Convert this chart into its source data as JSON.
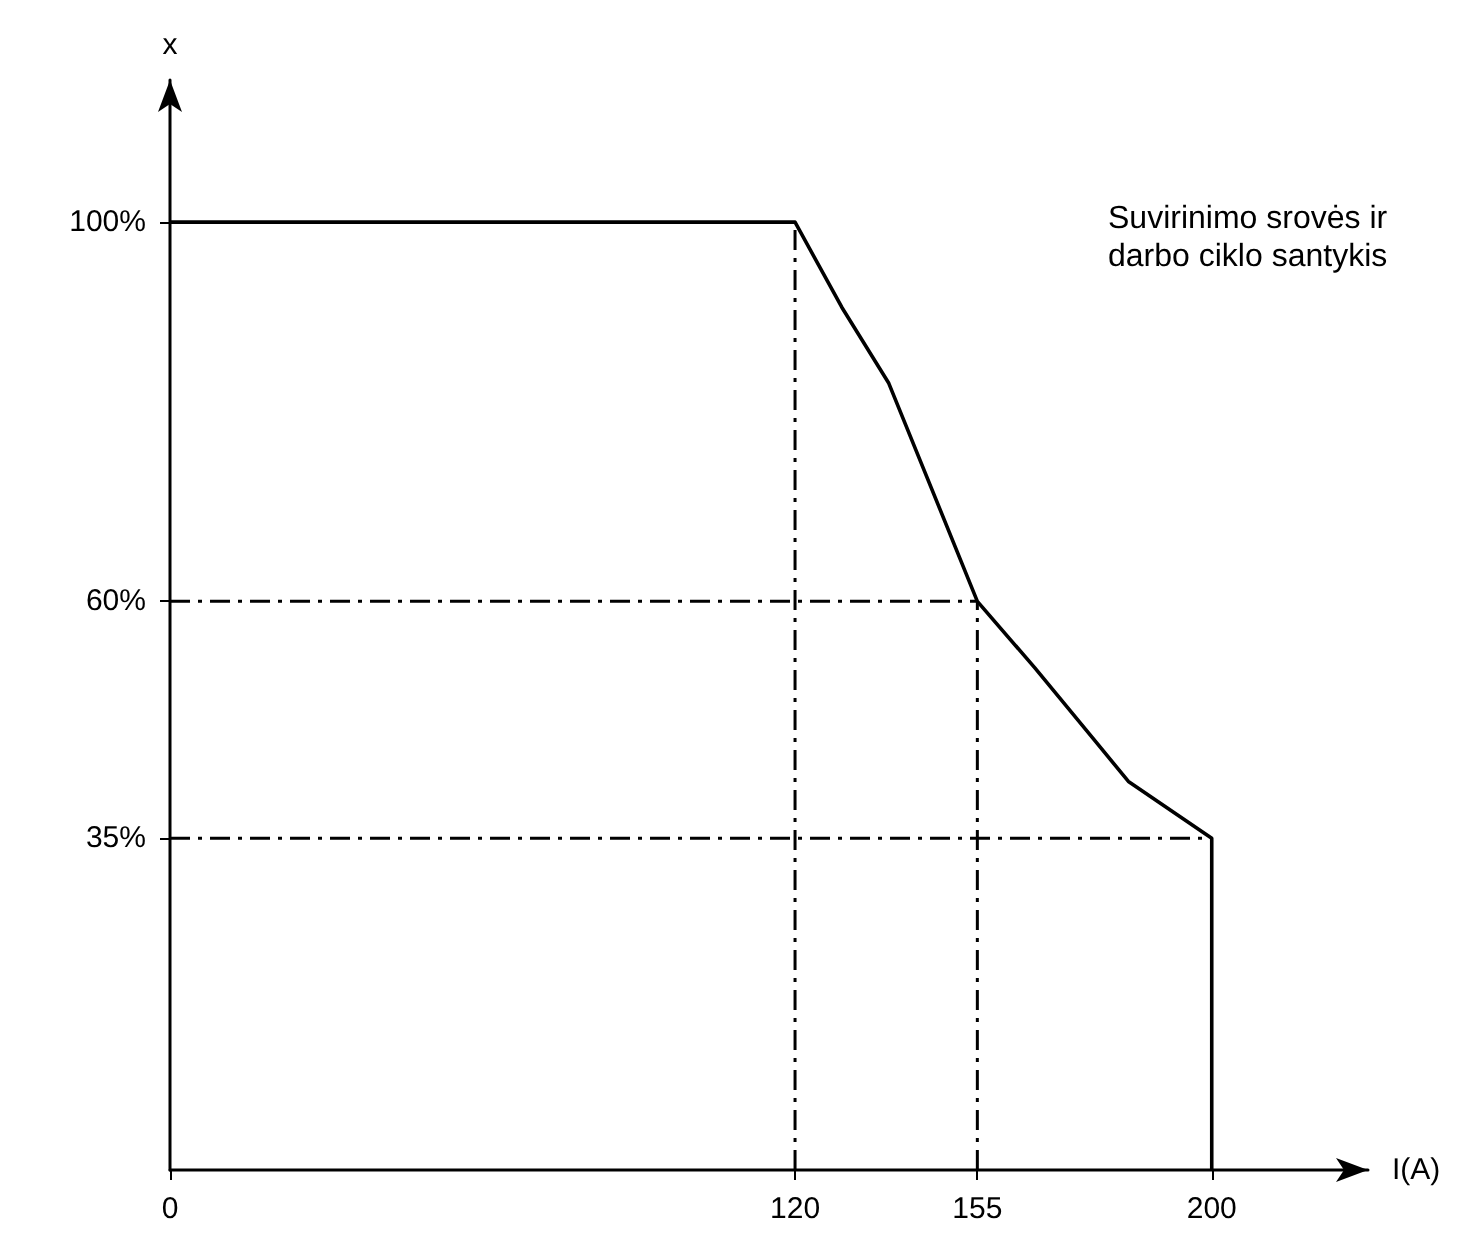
{
  "chart_data": {
    "type": "line",
    "xlabel": "I(A)",
    "ylabel": "x",
    "series": [
      {
        "color": "#000000",
        "x": [
          0,
          120,
          129,
          138,
          155,
          166,
          178,
          184,
          200,
          200
        ],
        "values": [
          100,
          100,
          91,
          83,
          60,
          53,
          45,
          41,
          35,
          0
        ]
      }
    ],
    "xlim": [
      0,
      230
    ],
    "xticks": [
      0,
      120,
      155,
      200
    ],
    "ylim": [
      0,
      115
    ],
    "yticks": [
      {
        "value": 35,
        "label": "35%"
      },
      {
        "value": 60,
        "label": "60%"
      },
      {
        "value": 100,
        "label": "100%"
      }
    ],
    "ref_lines": [
      {
        "axis": "x",
        "value": 120,
        "color": "#000000",
        "line_style": "dashed"
      },
      {
        "axis": "x",
        "value": 155,
        "color": "#000000",
        "line_style": "dashed"
      },
      {
        "axis": "y",
        "value": 60,
        "color": "#000000",
        "line_style": "dashed"
      },
      {
        "axis": "y",
        "value": 35,
        "color": "#000000",
        "line_style": "dashed"
      }
    ],
    "annotations": [
      "Suvirinimo srovės ir darbo ciklo santykis"
    ],
    "grid": false,
    "marker": "none",
    "line_style": "solid"
  }
}
